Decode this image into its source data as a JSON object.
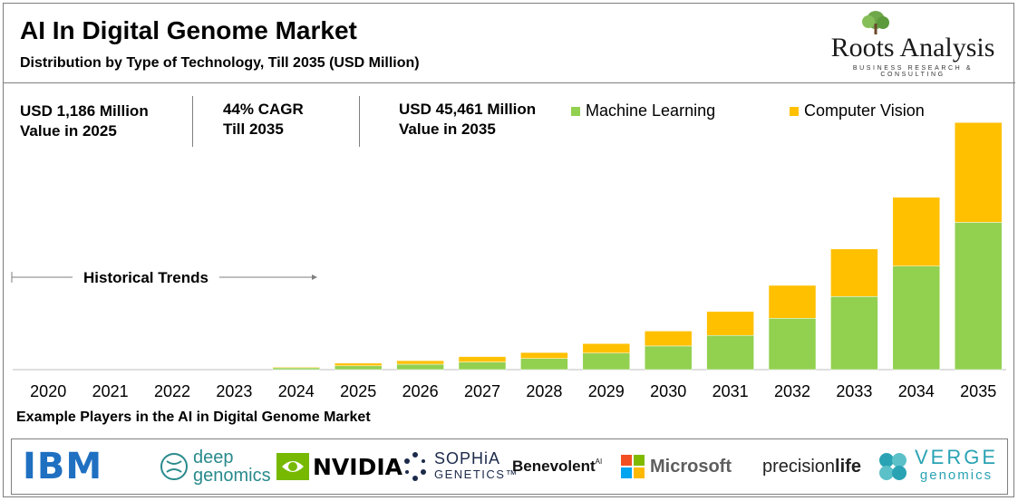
{
  "header": {
    "title": "AI In Digital Genome Market",
    "subtitle": "Distribution by Type of Technology, Till 2035 (USD Million)",
    "brand_name": "Roots Analysis",
    "brand_tagline": "BUSINESS RESEARCH & CONSULTING"
  },
  "kpis": [
    {
      "line1": "USD 1,186 Million",
      "line2": "Value in 2025"
    },
    {
      "line1": "44% CAGR",
      "line2": "Till 2035"
    },
    {
      "line1": "USD 45,461 Million",
      "line2": "Value in 2035"
    }
  ],
  "annotation": {
    "historical": "Historical Trends"
  },
  "colors": {
    "machine_learning": "#92d050",
    "computer_vision": "#ffc000",
    "axis": "#bfbfbf"
  },
  "chart_data": {
    "type": "bar",
    "stacked": true,
    "categories": [
      "2020",
      "2021",
      "2022",
      "2023",
      "2024",
      "2025",
      "2026",
      "2027",
      "2028",
      "2029",
      "2030",
      "2031",
      "2032",
      "2033",
      "2034",
      "2035"
    ],
    "series": [
      {
        "name": "Machine Learning",
        "values": [
          0,
          0,
          0,
          0,
          350,
          700,
          1000,
          1400,
          2050,
          3050,
          4350,
          6300,
          9450,
          13450,
          19050,
          27100
        ]
      },
      {
        "name": "Computer Vision",
        "values": [
          0,
          0,
          0,
          0,
          150,
          486,
          650,
          1000,
          1100,
          1750,
          2750,
          4400,
          6050,
          8750,
          12650,
          18361
        ]
      }
    ],
    "ylim": [
      0,
      46000
    ],
    "legend_position": "top-right",
    "grid": false
  },
  "footer": {
    "title": "Example Players in the AI in Digital Genome Market",
    "players": [
      {
        "name": "IBM",
        "color": "#1f70c1"
      },
      {
        "name": "deep",
        "name2": "genomics",
        "color": "#2a8a8c"
      },
      {
        "name": "NVIDIA",
        "color": "#000000"
      },
      {
        "name": "SOPHiA",
        "name2": "GENETICS™",
        "color": "#1c2a4a"
      },
      {
        "name": "Benevolent",
        "sup": "AI",
        "color": "#111111"
      },
      {
        "name": "Microsoft",
        "color": "#5e5e5e"
      },
      {
        "name": "precision",
        "name2": "life",
        "color": "#222222"
      },
      {
        "name": "VERGE",
        "name2": "genomics",
        "color": "#29a3b3"
      }
    ]
  }
}
